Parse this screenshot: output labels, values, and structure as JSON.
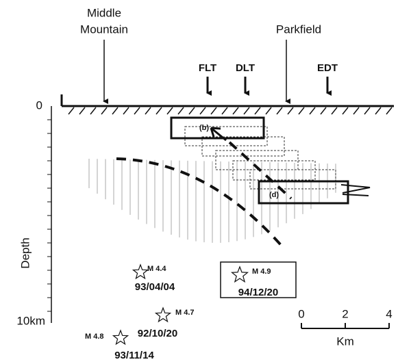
{
  "locations": [
    {
      "lines": [
        "Middle",
        "Mountain"
      ]
    },
    {
      "lines": [
        "Parkfield"
      ]
    }
  ],
  "instruments": [
    "FLT",
    "DLT",
    "EDT"
  ],
  "depth_axis": {
    "label": "Depth",
    "ticks": [
      "0",
      "10km"
    ]
  },
  "boxes": [
    "(b)",
    "(d)"
  ],
  "events": [
    {
      "magnitude": "M 4.4",
      "date": "93/04/04"
    },
    {
      "magnitude": "M 4.9",
      "date": "94/12/20"
    },
    {
      "magnitude": "M 4.7",
      "date": "92/10/20"
    },
    {
      "magnitude": "M 4.8",
      "date": "93/11/14"
    }
  ],
  "scale_bar": {
    "ticks": [
      "0",
      "2",
      "4"
    ],
    "unit": "Km"
  }
}
